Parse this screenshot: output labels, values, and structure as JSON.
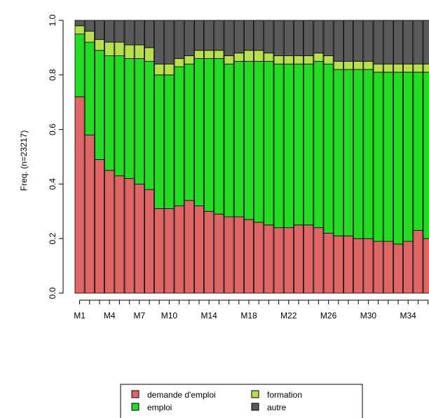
{
  "chart_data": {
    "type": "bar",
    "stacked": true,
    "normalized": true,
    "ylabel": "Freq. (n=23217)",
    "ylim": [
      0,
      1
    ],
    "y_ticks": [
      "0.0",
      "0.2",
      "0.4",
      "0.6",
      "0.8",
      "1.0"
    ],
    "categories": [
      "M1",
      "M2",
      "M3",
      "M4",
      "M5",
      "M6",
      "M7",
      "M8",
      "M9",
      "M10",
      "M11",
      "M12",
      "M13",
      "M14",
      "M15",
      "M16",
      "M17",
      "M18",
      "M19",
      "M20",
      "M21",
      "M22",
      "M23",
      "M24",
      "M25",
      "M26",
      "M27",
      "M28",
      "M29",
      "M30",
      "M31",
      "M32",
      "M33",
      "M34",
      "M35",
      "M36"
    ],
    "x_tick_labels": [
      "M1",
      "M4",
      "M7",
      "M10",
      "M14",
      "M18",
      "M22",
      "M26",
      "M30",
      "M34"
    ],
    "grid": false,
    "legend_position": "bottom",
    "series": [
      {
        "name": "demande d'emploi",
        "color": "#e06666",
        "values": [
          0.72,
          0.58,
          0.49,
          0.45,
          0.43,
          0.42,
          0.4,
          0.38,
          0.31,
          0.31,
          0.32,
          0.34,
          0.32,
          0.3,
          0.29,
          0.28,
          0.28,
          0.27,
          0.26,
          0.25,
          0.24,
          0.24,
          0.25,
          0.25,
          0.24,
          0.22,
          0.21,
          0.21,
          0.2,
          0.2,
          0.19,
          0.19,
          0.18,
          0.19,
          0.23,
          0.2
        ]
      },
      {
        "name": "emploi",
        "color": "#22dd22",
        "values": [
          0.23,
          0.34,
          0.4,
          0.42,
          0.44,
          0.44,
          0.46,
          0.47,
          0.49,
          0.49,
          0.51,
          0.5,
          0.54,
          0.56,
          0.57,
          0.56,
          0.57,
          0.58,
          0.59,
          0.6,
          0.6,
          0.6,
          0.59,
          0.59,
          0.61,
          0.62,
          0.61,
          0.61,
          0.62,
          0.62,
          0.62,
          0.62,
          0.63,
          0.62,
          0.58,
          0.61
        ]
      },
      {
        "name": "formation",
        "color": "#b8e04a",
        "values": [
          0.03,
          0.04,
          0.04,
          0.05,
          0.05,
          0.05,
          0.05,
          0.05,
          0.04,
          0.04,
          0.03,
          0.03,
          0.03,
          0.03,
          0.03,
          0.03,
          0.03,
          0.04,
          0.04,
          0.03,
          0.03,
          0.03,
          0.03,
          0.03,
          0.03,
          0.03,
          0.03,
          0.03,
          0.03,
          0.03,
          0.03,
          0.03,
          0.03,
          0.03,
          0.03,
          0.03
        ]
      },
      {
        "name": "autre",
        "color": "#5a5a5a",
        "values": [
          0.02,
          0.04,
          0.07,
          0.08,
          0.08,
          0.09,
          0.09,
          0.1,
          0.16,
          0.16,
          0.14,
          0.13,
          0.11,
          0.11,
          0.11,
          0.13,
          0.12,
          0.11,
          0.11,
          0.12,
          0.13,
          0.13,
          0.13,
          0.13,
          0.12,
          0.13,
          0.15,
          0.15,
          0.15,
          0.15,
          0.16,
          0.16,
          0.16,
          0.16,
          0.16,
          0.16
        ]
      }
    ]
  },
  "legend": {
    "items": [
      {
        "label": "demande d'emploi",
        "color": "#e06666"
      },
      {
        "label": "formation",
        "color": "#b8e04a"
      },
      {
        "label": "emploi",
        "color": "#22dd22"
      },
      {
        "label": "autre",
        "color": "#5a5a5a"
      }
    ]
  }
}
